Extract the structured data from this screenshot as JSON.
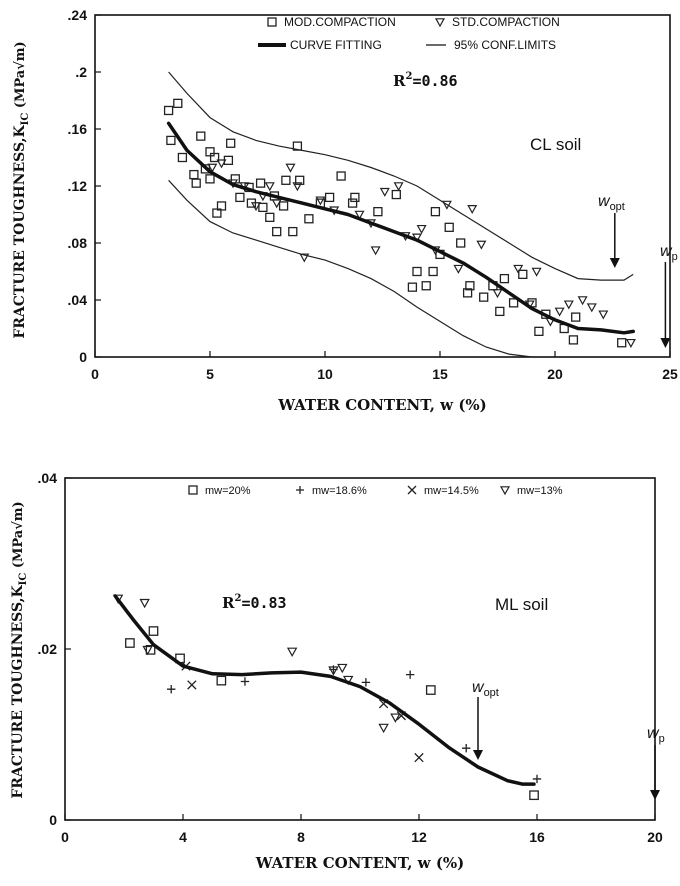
{
  "chart_data": [
    {
      "type": "scatter",
      "ylabel": "FRACTURE TOUGHNESS,K",
      "ylabel_sub": "IC",
      "ylabel_unit": " (MPa√m)",
      "xlabel": "WATER CONTENT, w (%)",
      "xlim": [
        0,
        25
      ],
      "ylim": [
        0,
        0.24
      ],
      "x_ticks": [
        "0",
        "5",
        "10",
        "15",
        "20",
        "25"
      ],
      "y_ticks": [
        ".24",
        ".2",
        ".16",
        ".12",
        ".08",
        ".04",
        "0"
      ],
      "r2_label": "R",
      "r2_sup": "2",
      "r2_value": "=0.86",
      "soil_label": "CL soil",
      "wopt_main": "w",
      "wopt_sub": "opt",
      "wopt_x": 22.6,
      "wp_main": "w",
      "wp_sub": "p",
      "wp_x": 24.8,
      "legend": [
        {
          "label": "MOD.COMPACTION",
          "marker": "square"
        },
        {
          "label": "STD.COMPACTION",
          "marker": "triangle-down"
        },
        {
          "label": "CURVE FITTING",
          "marker": "thick-line"
        },
        {
          "label": "95% CONF.LIMITS",
          "marker": "thin-line"
        }
      ],
      "series": [
        {
          "name": "MOD.COMPACTION",
          "marker": "square",
          "points": [
            [
              3.2,
              0.173
            ],
            [
              3.6,
              0.178
            ],
            [
              3.3,
              0.152
            ],
            [
              3.8,
              0.14
            ],
            [
              4.3,
              0.128
            ],
            [
              4.4,
              0.122
            ],
            [
              4.6,
              0.155
            ],
            [
              4.8,
              0.132
            ],
            [
              5.0,
              0.144
            ],
            [
              5.2,
              0.14
            ],
            [
              5.0,
              0.125
            ],
            [
              5.3,
              0.101
            ],
            [
              5.5,
              0.106
            ],
            [
              5.8,
              0.138
            ],
            [
              5.9,
              0.15
            ],
            [
              6.1,
              0.125
            ],
            [
              6.3,
              0.112
            ],
            [
              6.7,
              0.119
            ],
            [
              6.8,
              0.108
            ],
            [
              7.2,
              0.122
            ],
            [
              7.3,
              0.105
            ],
            [
              7.6,
              0.098
            ],
            [
              7.9,
              0.088
            ],
            [
              7.8,
              0.113
            ],
            [
              8.2,
              0.106
            ],
            [
              8.3,
              0.124
            ],
            [
              8.6,
              0.088
            ],
            [
              8.8,
              0.148
            ],
            [
              8.9,
              0.124
            ],
            [
              9.3,
              0.097
            ],
            [
              9.8,
              0.108
            ],
            [
              10.2,
              0.112
            ],
            [
              10.7,
              0.127
            ],
            [
              11.2,
              0.108
            ],
            [
              11.3,
              0.112
            ],
            [
              12.3,
              0.102
            ],
            [
              13.1,
              0.114
            ],
            [
              13.8,
              0.049
            ],
            [
              14.0,
              0.06
            ],
            [
              14.4,
              0.05
            ],
            [
              14.7,
              0.06
            ],
            [
              14.8,
              0.102
            ],
            [
              15.0,
              0.072
            ],
            [
              15.4,
              0.091
            ],
            [
              15.9,
              0.08
            ],
            [
              16.2,
              0.045
            ],
            [
              16.3,
              0.05
            ],
            [
              16.9,
              0.042
            ],
            [
              17.3,
              0.05
            ],
            [
              17.6,
              0.032
            ],
            [
              17.8,
              0.055
            ],
            [
              18.2,
              0.038
            ],
            [
              18.6,
              0.058
            ],
            [
              19.0,
              0.038
            ],
            [
              19.3,
              0.018
            ],
            [
              19.6,
              0.03
            ],
            [
              20.4,
              0.02
            ],
            [
              20.8,
              0.012
            ],
            [
              20.9,
              0.028
            ],
            [
              22.9,
              0.01
            ]
          ]
        },
        {
          "name": "STD.COMPACTION",
          "marker": "triangle-down",
          "points": [
            [
              5.1,
              0.133
            ],
            [
              5.5,
              0.136
            ],
            [
              6.0,
              0.122
            ],
            [
              6.5,
              0.12
            ],
            [
              7.0,
              0.106
            ],
            [
              7.3,
              0.113
            ],
            [
              7.6,
              0.12
            ],
            [
              7.9,
              0.108
            ],
            [
              8.5,
              0.133
            ],
            [
              8.8,
              0.12
            ],
            [
              9.1,
              0.07
            ],
            [
              9.8,
              0.11
            ],
            [
              10.4,
              0.103
            ],
            [
              11.5,
              0.1
            ],
            [
              12.0,
              0.094
            ],
            [
              12.2,
              0.075
            ],
            [
              12.6,
              0.116
            ],
            [
              13.2,
              0.12
            ],
            [
              13.5,
              0.085
            ],
            [
              14.0,
              0.084
            ],
            [
              14.2,
              0.09
            ],
            [
              14.8,
              0.075
            ],
            [
              15.3,
              0.107
            ],
            [
              15.8,
              0.062
            ],
            [
              16.4,
              0.104
            ],
            [
              16.8,
              0.079
            ],
            [
              17.5,
              0.045
            ],
            [
              18.4,
              0.062
            ],
            [
              18.9,
              0.037
            ],
            [
              19.2,
              0.06
            ],
            [
              19.8,
              0.025
            ],
            [
              20.2,
              0.032
            ],
            [
              20.6,
              0.037
            ],
            [
              21.2,
              0.04
            ],
            [
              21.6,
              0.035
            ],
            [
              22.1,
              0.03
            ],
            [
              23.3,
              0.01
            ]
          ]
        }
      ],
      "curve_fit": [
        [
          3.2,
          0.164
        ],
        [
          4,
          0.145
        ],
        [
          5,
          0.13
        ],
        [
          6,
          0.121
        ],
        [
          7,
          0.116
        ],
        [
          8,
          0.112
        ],
        [
          9,
          0.108
        ],
        [
          10,
          0.104
        ],
        [
          11,
          0.1
        ],
        [
          12,
          0.094
        ],
        [
          13,
          0.088
        ],
        [
          14,
          0.082
        ],
        [
          15,
          0.074
        ],
        [
          16,
          0.066
        ],
        [
          17,
          0.056
        ],
        [
          18,
          0.045
        ],
        [
          19,
          0.034
        ],
        [
          20,
          0.026
        ],
        [
          21,
          0.02
        ],
        [
          22,
          0.019
        ],
        [
          23,
          0.017
        ],
        [
          23.4,
          0.018
        ]
      ],
      "conf_upper": [
        [
          3.2,
          0.2
        ],
        [
          4,
          0.185
        ],
        [
          5,
          0.168
        ],
        [
          6,
          0.158
        ],
        [
          7,
          0.152
        ],
        [
          8,
          0.148
        ],
        [
          9,
          0.145
        ],
        [
          10,
          0.142
        ],
        [
          11,
          0.138
        ],
        [
          12,
          0.133
        ],
        [
          13,
          0.127
        ],
        [
          14,
          0.12
        ],
        [
          15,
          0.11
        ],
        [
          16,
          0.1
        ],
        [
          17,
          0.09
        ],
        [
          18,
          0.08
        ],
        [
          19,
          0.07
        ],
        [
          20,
          0.062
        ],
        [
          21,
          0.055
        ],
        [
          22,
          0.054
        ],
        [
          23,
          0.054
        ],
        [
          23.4,
          0.058
        ]
      ],
      "conf_lower": [
        [
          3.2,
          0.124
        ],
        [
          4,
          0.11
        ],
        [
          5,
          0.095
        ],
        [
          6,
          0.087
        ],
        [
          7,
          0.082
        ],
        [
          8,
          0.077
        ],
        [
          9,
          0.072
        ],
        [
          10,
          0.068
        ],
        [
          11,
          0.062
        ],
        [
          12,
          0.055
        ],
        [
          13,
          0.046
        ],
        [
          14,
          0.035
        ],
        [
          15,
          0.025
        ],
        [
          16,
          0.015
        ],
        [
          17,
          0.007
        ],
        [
          18,
          0.002
        ],
        [
          19,
          0.0
        ]
      ]
    },
    {
      "type": "scatter",
      "ylabel": "FRACTURE TOUGHNESS,K",
      "ylabel_sub": "IC",
      "ylabel_unit": " (MPa√m)",
      "xlabel": "WATER CONTENT, w (%)",
      "xlim": [
        0,
        20
      ],
      "ylim": [
        0,
        0.04
      ],
      "x_ticks": [
        "0",
        "4",
        "8",
        "12",
        "16",
        "20"
      ],
      "y_ticks": [
        ".04",
        ".02",
        "0"
      ],
      "r2_label": "R",
      "r2_sup": "2",
      "r2_value": "=0.83",
      "soil_label": "ML soil",
      "wopt_main": "w",
      "wopt_sub": "opt",
      "wopt_x": 14.0,
      "wp_main": "w",
      "wp_sub": "p",
      "wp_x": 20.0,
      "legend": [
        {
          "label": "mw=20%",
          "marker": "square"
        },
        {
          "label": "mw=18.6%",
          "marker": "plus"
        },
        {
          "label": "mw=14.5%",
          "marker": "cross"
        },
        {
          "label": "mw=13%",
          "marker": "triangle-down"
        }
      ],
      "series": [
        {
          "name": "mw=20%",
          "marker": "square",
          "points": [
            [
              2.2,
              0.0207
            ],
            [
              2.9,
              0.0199
            ],
            [
              3.0,
              0.0221
            ],
            [
              3.9,
              0.0189
            ],
            [
              5.3,
              0.0163
            ],
            [
              12.4,
              0.0152
            ],
            [
              15.9,
              0.0029
            ]
          ]
        },
        {
          "name": "mw=18.6%",
          "marker": "plus",
          "points": [
            [
              3.6,
              0.0153
            ],
            [
              6.1,
              0.0162
            ],
            [
              9.1,
              0.0176
            ],
            [
              10.2,
              0.0161
            ],
            [
              11.7,
              0.017
            ],
            [
              13.6,
              0.0084
            ],
            [
              16.0,
              0.0048
            ]
          ]
        },
        {
          "name": "mw=14.5%",
          "marker": "cross",
          "points": [
            [
              4.1,
              0.018
            ],
            [
              4.3,
              0.0158
            ],
            [
              10.8,
              0.0136
            ],
            [
              11.4,
              0.0122
            ],
            [
              12.0,
              0.0073
            ]
          ]
        },
        {
          "name": "mw=13%",
          "marker": "triangle-down",
          "points": [
            [
              1.8,
              0.0259
            ],
            [
              2.7,
              0.0254
            ],
            [
              2.8,
              0.0199
            ],
            [
              7.7,
              0.0197
            ],
            [
              9.1,
              0.0175
            ],
            [
              9.4,
              0.0178
            ],
            [
              9.6,
              0.0164
            ],
            [
              10.8,
              0.0108
            ],
            [
              11.2,
              0.012
            ]
          ]
        }
      ],
      "curve_fit": [
        [
          1.7,
          0.0262
        ],
        [
          2.3,
          0.0235
        ],
        [
          3,
          0.0205
        ],
        [
          4,
          0.018
        ],
        [
          5,
          0.0171
        ],
        [
          6,
          0.017
        ],
        [
          7,
          0.0172
        ],
        [
          8,
          0.0173
        ],
        [
          9,
          0.0168
        ],
        [
          10,
          0.0156
        ],
        [
          11,
          0.0137
        ],
        [
          12,
          0.0112
        ],
        [
          13,
          0.0085
        ],
        [
          14,
          0.0062
        ],
        [
          15,
          0.0046
        ],
        [
          15.5,
          0.0042
        ],
        [
          15.9,
          0.0042
        ]
      ]
    }
  ]
}
